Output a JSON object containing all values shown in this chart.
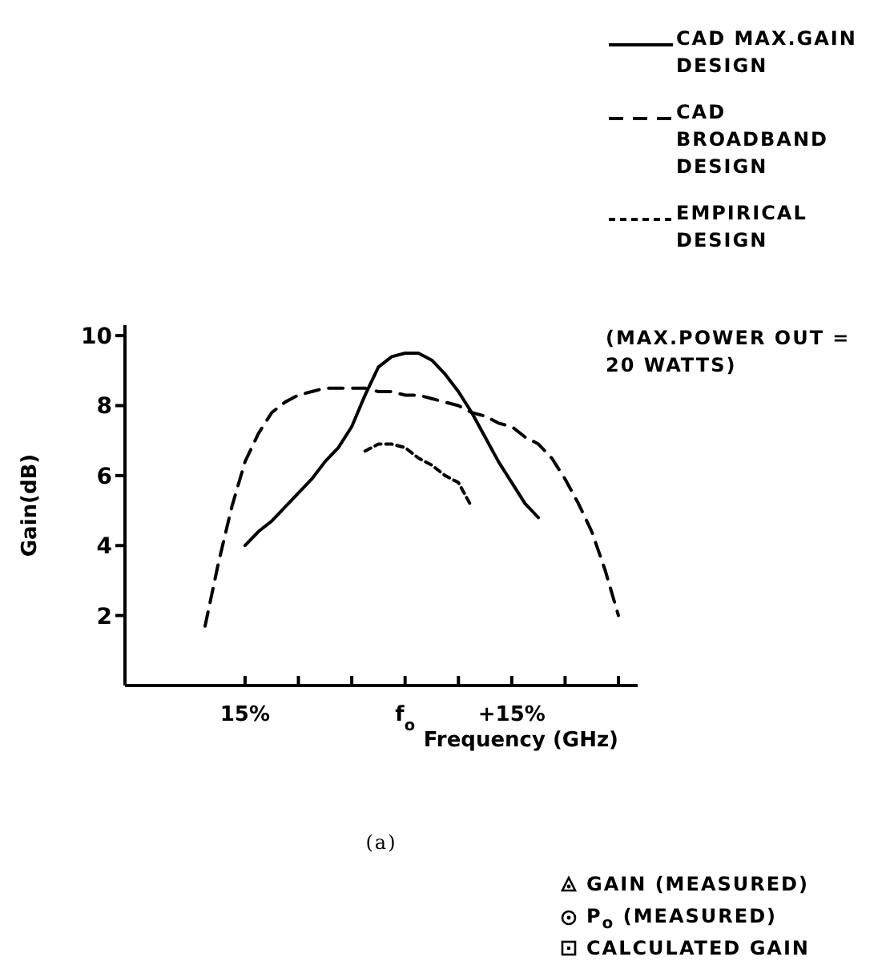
{
  "chart_data": {
    "type": "line",
    "xlabel": "Frequency (GHz)",
    "ylabel": "Gain(dB)",
    "categories": [
      null,
      null,
      null,
      "15%",
      null,
      null,
      null,
      null,
      null,
      null,
      null,
      null,
      null,
      null,
      null,
      "f$_{o}$",
      null,
      null,
      null,
      null,
      null,
      null,
      null,
      "+15%",
      null,
      null,
      null,
      null,
      null,
      null,
      null,
      null
    ],
    "ylim": [
      0,
      10.3
    ],
    "yticks": [
      2,
      4,
      6,
      8,
      10
    ],
    "legend": "top right",
    "marker": "none",
    "series": [
      {
        "name": "CAD MAX.GAIN DESIGN",
        "color": "#000000",
        "line_style": "solid",
        "values": [
          null,
          null,
          null,
          4.0,
          4.4,
          4.7,
          5.1,
          5.5,
          5.9,
          6.4,
          6.8,
          7.4,
          8.3,
          9.1,
          9.4,
          9.5,
          9.5,
          9.3,
          8.9,
          8.4,
          7.8,
          7.1,
          6.4,
          5.8,
          5.2,
          4.8,
          null,
          null,
          null,
          null,
          null,
          null
        ]
      },
      {
        "name": "CAD BROADBAND DESIGN",
        "color": "#000000",
        "line_style": "dashed",
        "values": [
          1.7,
          3.5,
          5.1,
          6.4,
          7.2,
          7.8,
          8.1,
          8.3,
          8.4,
          8.5,
          8.5,
          8.5,
          8.5,
          8.4,
          8.4,
          8.3,
          8.3,
          8.2,
          8.1,
          8.0,
          7.8,
          7.7,
          7.5,
          7.4,
          7.1,
          6.9,
          6.5,
          5.9,
          5.2,
          4.4,
          3.3,
          2.0
        ]
      },
      {
        "name": "EMPIRICAL DESIGN",
        "color": "#000000",
        "line_style": "dotted",
        "values": [
          null,
          null,
          null,
          null,
          null,
          null,
          null,
          null,
          null,
          null,
          null,
          null,
          6.7,
          6.9,
          6.9,
          6.8,
          6.5,
          6.3,
          6.0,
          5.8,
          5.1,
          null,
          null,
          null,
          null,
          null,
          null,
          null,
          null,
          null,
          null,
          null
        ]
      }
    ],
    "annotations": [
      "(MAX.POWER OUT = 20 WATTS)",
      "(a)",
      "GAIN (MEASURED)",
      "P$_{o}$ (MEASURED)",
      "CALCULATED GAIN"
    ]
  }
}
